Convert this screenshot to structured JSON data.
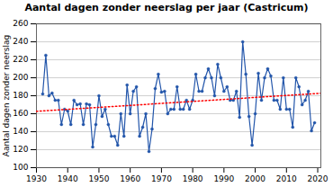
{
  "chart_data": {
    "type": "line",
    "title": "Aantal dagen zonder neerslag per jaar (Castricum)",
    "ylabel": "Aantal dagen zonder neerslag",
    "xlim": [
      1930,
      2021
    ],
    "ylim": [
      100,
      260
    ],
    "xticks": [
      1930,
      1940,
      1950,
      1960,
      1970,
      1980,
      1990,
      2000,
      2010,
      2020
    ],
    "yticks": [
      100,
      120,
      140,
      160,
      180,
      200,
      220,
      240,
      260
    ],
    "grid": "y",
    "series": [
      {
        "type": "line",
        "color": "#2255aa",
        "marker": "circle",
        "x": [
          1932,
          1933,
          1934,
          1935,
          1936,
          1937,
          1938,
          1939,
          1940,
          1941,
          1942,
          1943,
          1944,
          1945,
          1946,
          1947,
          1948,
          1949,
          1950,
          1951,
          1952,
          1953,
          1954,
          1955,
          1956,
          1957,
          1958,
          1959,
          1960,
          1961,
          1962,
          1963,
          1964,
          1965,
          1966,
          1967,
          1968,
          1969,
          1970,
          1971,
          1972,
          1973,
          1974,
          1975,
          1976,
          1977,
          1978,
          1979,
          1980,
          1981,
          1982,
          1983,
          1984,
          1985,
          1986,
          1987,
          1988,
          1989,
          1990,
          1991,
          1992,
          1993,
          1994,
          1995,
          1996,
          1997,
          1998,
          1999,
          2000,
          2001,
          2002,
          2003,
          2004,
          2005,
          2006,
          2007,
          2008,
          2009,
          2010,
          2011,
          2012,
          2013,
          2014,
          2015,
          2016,
          2017,
          2018,
          2019
        ],
        "values": [
          182,
          225,
          180,
          183,
          175,
          175,
          148,
          165,
          163,
          148,
          175,
          170,
          171,
          148,
          171,
          170,
          123,
          148,
          180,
          157,
          165,
          148,
          135,
          135,
          125,
          160,
          135,
          192,
          160,
          185,
          190,
          135,
          145,
          160,
          118,
          143,
          188,
          204,
          184,
          185,
          160,
          165,
          165,
          190,
          165,
          165,
          175,
          165,
          175,
          204,
          185,
          185,
          200,
          210,
          200,
          180,
          215,
          200,
          185,
          190,
          175,
          175,
          185,
          156,
          240,
          204,
          157,
          125,
          160,
          205,
          175,
          200,
          210,
          202,
          175,
          175,
          165,
          200,
          165,
          165,
          145,
          200,
          190,
          170,
          175,
          185,
          141,
          150
        ]
      },
      {
        "type": "line",
        "color": "#ff0000",
        "line_style": "dotted",
        "x": [
          1930,
          2021
        ],
        "values": [
          162.6745,
          182.7345
        ]
      }
    ]
  }
}
